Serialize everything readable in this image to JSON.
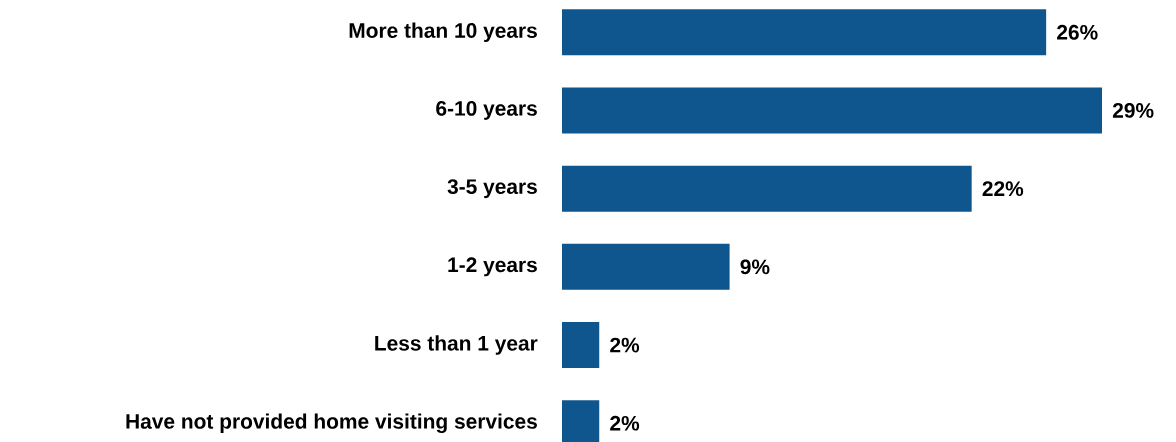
{
  "chart_data": {
    "type": "bar",
    "orientation": "horizontal",
    "categories": [
      "More than 10 years",
      "6-10 years",
      "3-5 years",
      "1-2 years",
      "Less than 1 year",
      "Have not provided home visiting services"
    ],
    "values": [
      26,
      29,
      22,
      9,
      2,
      2
    ],
    "value_labels": [
      "26%",
      "29%",
      "22%",
      "9%",
      "2%",
      "2%"
    ],
    "color": "#0f568f"
  }
}
